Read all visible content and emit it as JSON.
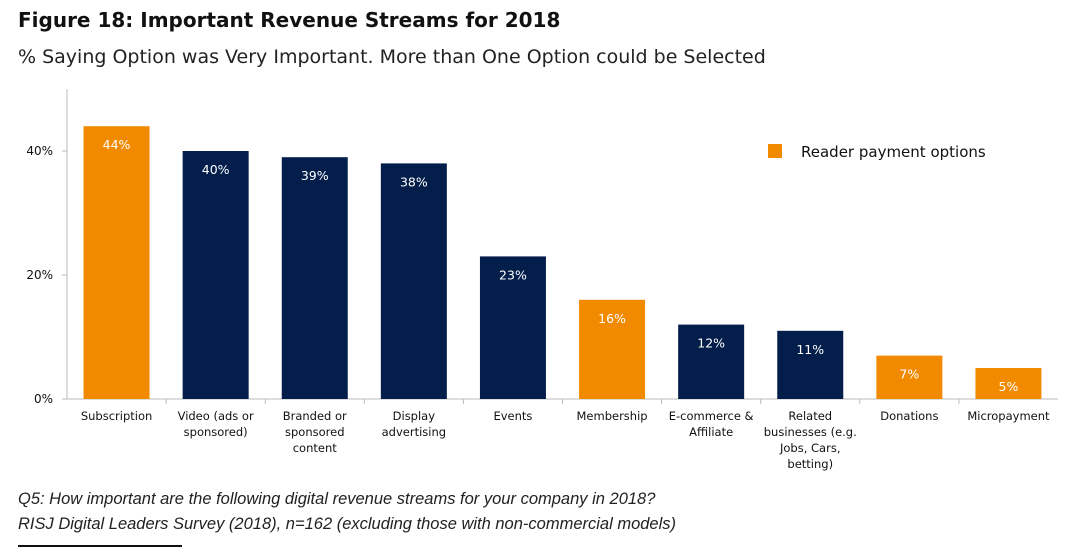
{
  "figure_title": "Figure 18: Important Revenue Streams for 2018",
  "subtitle": "% Saying Option was Very Important. More than One Option could be Selected",
  "footnote": {
    "question": "Q5: How important are the following digital revenue streams for your company in 2018?",
    "source": "RISJ Digital Leaders Survey (2018), n=162 (excluding those with non-commercial models)"
  },
  "chart_data": {
    "type": "bar",
    "title": "Figure 18: Important Revenue Streams for 2018",
    "categories": [
      [
        "Subscription"
      ],
      [
        "Video (ads or",
        "sponsored)"
      ],
      [
        "Branded or",
        "sponsored",
        "content"
      ],
      [
        "Display",
        "advertising"
      ],
      [
        "Events"
      ],
      [
        "Membership"
      ],
      [
        "E-commerce &",
        "Affiliate"
      ],
      [
        "Related",
        "businesses (e.g.",
        "Jobs, Cars,",
        "betting)"
      ],
      [
        "Donations"
      ],
      [
        "Micropayment"
      ]
    ],
    "values": [
      44,
      40,
      39,
      38,
      23,
      16,
      12,
      11,
      7,
      5
    ],
    "data_labels": [
      "44%",
      "40%",
      "39%",
      "38%",
      "23%",
      "16%",
      "12%",
      "11%",
      "7%",
      "5%"
    ],
    "reader_payment": [
      true,
      false,
      false,
      false,
      false,
      true,
      false,
      false,
      true,
      true
    ],
    "yticks": [
      "0%",
      "20%",
      "40%"
    ],
    "ytick_values": [
      0,
      20,
      40
    ],
    "ylim": [
      0,
      50
    ],
    "grid": false,
    "legend": {
      "label": "Reader payment options",
      "placement": "top-right"
    },
    "colors": {
      "reader_payment": "#F28A00",
      "other": "#031E4B",
      "axis": "#BBBBBB"
    }
  }
}
